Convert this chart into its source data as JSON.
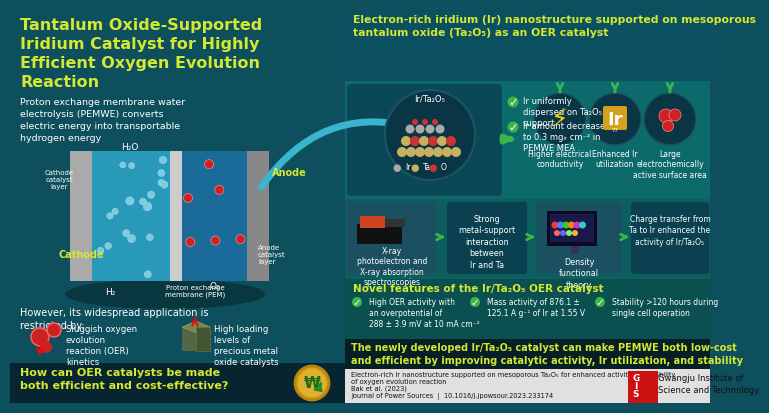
{
  "bg_left": "#0d4f5c",
  "bg_right_top": "#0a7070",
  "bg_right_mid": "#0d6868",
  "bg_right_novel": "#0a5858",
  "title_color": "#d4e832",
  "white": "#ffffff",
  "green_check": "#3cb44a",
  "arrow_green": "#3cb44a",
  "conclusion_bg": "#061e26",
  "question_bg": "#072530",
  "ref_bg": "#e8e8e8",
  "title_lines": [
    "Tantalum Oxide-Supported",
    "Iridium Catalyst for Highly",
    "Efficient Oxygen Evolution",
    "Reaction"
  ],
  "intro": "Proton exchange membrane water\nelectrolysis (PEMWE) converts\nelectric energy into transportable\nhydrogen energy",
  "header_right": "Electron-rich iridium (Ir) nanostructure supported on mesoporous\ntantalum oxide (Ta₂O₅) as an OER catalyst",
  "bullet1": "Ir uniformly\ndispersed on Ta₂O₅\nsupport",
  "bullet2": "Ir amount decreased\nto 0.3 mgᵢᵣ cm⁻² in\nPEMWE MEA",
  "benefit1_title": "Higher electrical\nconductivity",
  "benefit2_title": "Enhanced Ir\nutilization",
  "benefit3_title": "Large\nelectrochemically\nactive surface area",
  "method1": "X-ray\nphotoelectron and\nX-ray absorption\nspectroscopies",
  "method2": "Strong\nmetal-support\ninteraction\nbetween\nIr and Ta",
  "method3": "Density\nfunctional\ntheory",
  "method4": "Charge transfer from\nTa to Ir enhanced the\nactivity of Ir/Ta₂O₅",
  "novel_title": "Novel features of the Ir/Ta₂O₅ OER catalyst",
  "feat1": "High OER activity with\nan overpotential of\n288 ± 3.9 mV at 10 mA cm⁻²",
  "feat2": "Mass activity of 876.1 ±\n125.1 A g⁻¹ of Ir at 1.55 V",
  "feat3": "Stability >120 hours during\nsingle cell operation",
  "conclusion": "The newly developed Ir/Ta₂O₅ catalyst can make PEMWE both low-cost\nand efficient by improving catalytic activity, Ir utilization, and stability",
  "restrict_title": "However, its widespread application is\nrestricted by:",
  "restrict1": "Sluggish oxygen\nevolution\nreaction (OER)\nkinetics",
  "restrict2": "High loading\nlevels of\nprecious metal\noxide catalysts",
  "question": "How can OER catalysts be made\nboth efficient and cost-effective?",
  "ref_text1": "Electron-rich Ir nanostructure supported on mesoporous Ta₂O₅ for enhanced activity and stability",
  "ref_text2": "of oxygen evolution reaction",
  "ref_text3": "Bak et al. (2023)",
  "ref_text4": "Journal of Power Sources  |  10.1016/j.jpowsour.2023.233174",
  "institute": "Gwangju Institute of\nScience and Technology"
}
